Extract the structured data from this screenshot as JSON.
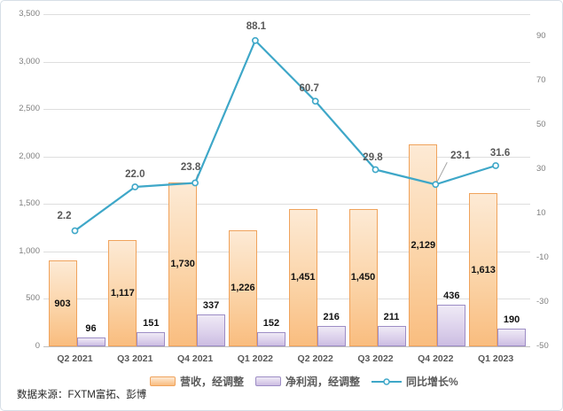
{
  "source_note": "数据来源：FXTM富拓、彭博",
  "chart_data": {
    "type": "combo (bar + line)",
    "categories": [
      "Q2 2021",
      "Q3 2021",
      "Q4 2021",
      "Q1 2022",
      "Q2 2022",
      "Q3 2022",
      "Q4 2022",
      "Q1 2023"
    ],
    "series": [
      {
        "name": "营收，经调整",
        "type": "bar",
        "axis": "primary",
        "values": [
          903,
          1117,
          1730,
          1226,
          1451,
          1450,
          2129,
          1613
        ],
        "labels": [
          "903",
          "1,117",
          "1,730",
          "1,226",
          "1,451",
          "1,450",
          "2,129",
          "1,613"
        ],
        "fill_top": "#fdead5",
        "fill_bottom": "#f9bd7f",
        "border": "#f0a35c",
        "label_position": "inside-center"
      },
      {
        "name": "净利润，经调整",
        "type": "bar",
        "axis": "primary",
        "values": [
          96,
          151,
          337,
          152,
          216,
          211,
          436,
          190
        ],
        "labels": [
          "96",
          "151",
          "337",
          "152",
          "216",
          "211",
          "436",
          "190"
        ],
        "fill_top": "#efeaf6",
        "fill_bottom": "#ccbde2",
        "border": "#9d8dc5",
        "label_position": "outside-end"
      },
      {
        "name": "同比增长%",
        "type": "line",
        "axis": "secondary",
        "values": [
          2.2,
          22.0,
          23.8,
          88.1,
          60.7,
          29.8,
          23.1,
          31.6
        ],
        "labels": [
          "2.2",
          "22.0",
          "23.8",
          "88.1",
          "60.7",
          "29.8",
          "23.1",
          "31.6"
        ],
        "color": "#3ea7c8",
        "marker": "circle-white-fill"
      }
    ],
    "axes": {
      "primary_y": {
        "min": 0,
        "max": 3500,
        "step": 500,
        "tick_labels": [
          "0",
          "500",
          "1,000",
          "1,500",
          "2,000",
          "2,500",
          "3,000",
          "3,500"
        ]
      },
      "secondary_y": {
        "min": -50,
        "max": 100,
        "step": 20,
        "tick_labels": [
          "90",
          "70",
          "50",
          "30",
          "10",
          "-10",
          "-30",
          "-50"
        ]
      }
    },
    "grid": "horizontal",
    "legend_position": "bottom",
    "title": ""
  },
  "colors": {
    "grid": "#dedede",
    "axis_line": "#bfbfbf",
    "tick_text": "#7f7f7f",
    "category_text": "#595959",
    "line_series": "#3ea7c8",
    "leader_line": "#a6a6a6"
  }
}
